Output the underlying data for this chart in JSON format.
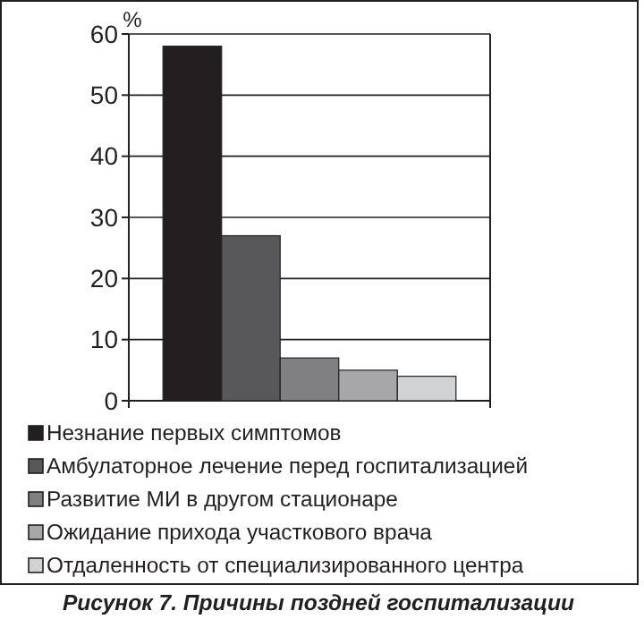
{
  "chart_data": {
    "type": "bar",
    "ylabel": "%",
    "categories": [
      null
    ],
    "series": [
      {
        "name": "Незнание первых симптомов",
        "color": "#231f20",
        "values": [
          58
        ]
      },
      {
        "name": "Амбулаторное лечение перед госпитализацией",
        "color": "#58585a",
        "values": [
          27
        ]
      },
      {
        "name": "Развитие МИ в другом стационаре",
        "color": "#808082",
        "values": [
          7
        ]
      },
      {
        "name": "Ожидание прихода участкового врача",
        "color": "#a7a7a9",
        "values": [
          5
        ]
      },
      {
        "name": "Отдаленность от специализированного центра",
        "color": "#d1d2d4",
        "values": [
          4
        ]
      }
    ],
    "ylim": [
      0,
      60
    ],
    "yticks": [
      0,
      10,
      20,
      30,
      40,
      50,
      60
    ],
    "grid": "y",
    "legend": "bottom",
    "annotations": [
      "Рисунок 7. Причины поздней госпитализации"
    ]
  }
}
